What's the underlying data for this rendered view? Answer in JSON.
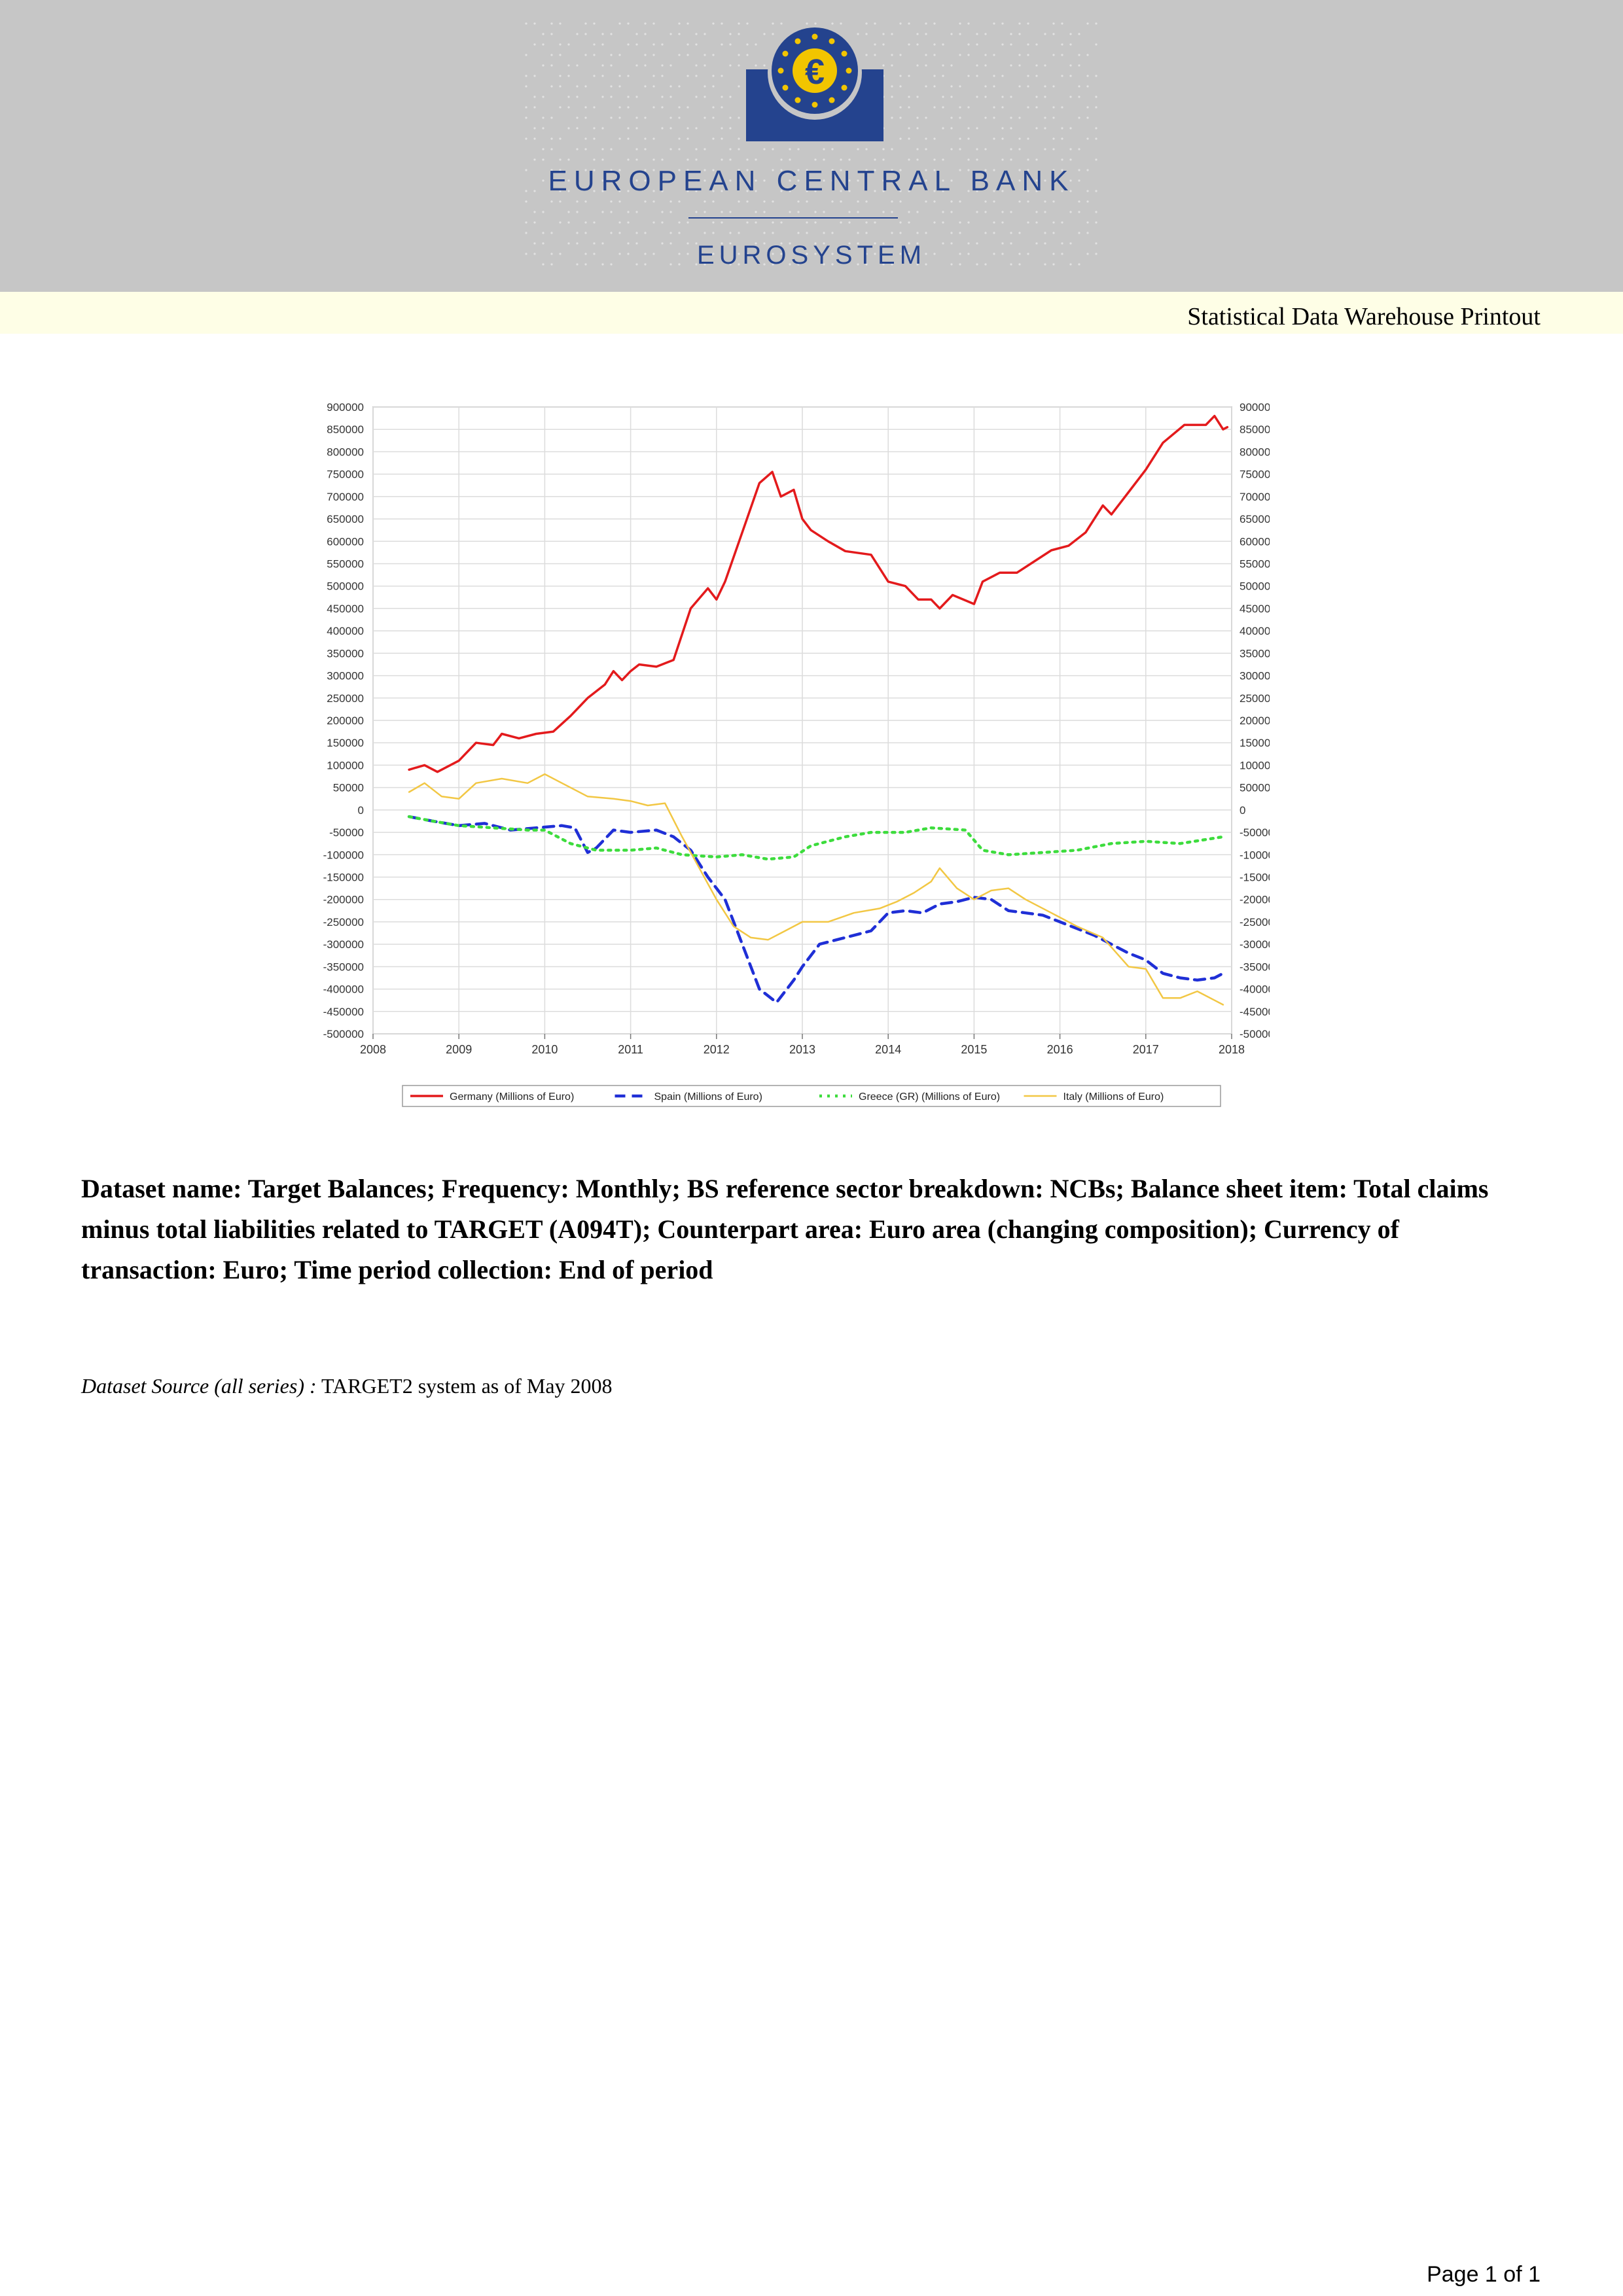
{
  "header": {
    "bank_name": "EUROPEAN CENTRAL BANK",
    "system_name": "EUROSYSTEM",
    "logo_icon": "euro-stars-logo-icon",
    "logo_colors": {
      "blue": "#24438e",
      "gold": "#f2c500"
    }
  },
  "printout_title": "Statistical Data Warehouse Printout",
  "chart_data": {
    "type": "line",
    "title": "",
    "xlabel": "",
    "ylabel": "",
    "xlim": [
      2008,
      2018
    ],
    "ylim": [
      -500000,
      900000
    ],
    "x_ticks": [
      "2008",
      "2009",
      "2010",
      "2011",
      "2012",
      "2013",
      "2014",
      "2015",
      "2016",
      "2017",
      "2018"
    ],
    "y_ticks": [
      "900000",
      "850000",
      "800000",
      "750000",
      "700000",
      "650000",
      "600000",
      "550000",
      "500000",
      "450000",
      "400000",
      "350000",
      "300000",
      "250000",
      "200000",
      "150000",
      "100000",
      "50000",
      "0",
      "-50000",
      "-100000",
      "-150000",
      "-200000",
      "-250000",
      "-300000",
      "-350000",
      "-400000",
      "-450000",
      "-500000"
    ],
    "grid": true,
    "legend_position": "bottom",
    "series": [
      {
        "name": "Germany (Millions of Euro)",
        "color": "#e31a1c",
        "style": "solid",
        "points": [
          [
            2008.42,
            90000
          ],
          [
            2008.6,
            100000
          ],
          [
            2008.75,
            85000
          ],
          [
            2009.0,
            110000
          ],
          [
            2009.2,
            150000
          ],
          [
            2009.4,
            145000
          ],
          [
            2009.5,
            170000
          ],
          [
            2009.7,
            160000
          ],
          [
            2009.9,
            170000
          ],
          [
            2010.1,
            175000
          ],
          [
            2010.3,
            210000
          ],
          [
            2010.5,
            250000
          ],
          [
            2010.7,
            280000
          ],
          [
            2010.8,
            310000
          ],
          [
            2010.9,
            290000
          ],
          [
            2011.0,
            310000
          ],
          [
            2011.1,
            325000
          ],
          [
            2011.3,
            320000
          ],
          [
            2011.5,
            335000
          ],
          [
            2011.7,
            450000
          ],
          [
            2011.9,
            495000
          ],
          [
            2012.0,
            470000
          ],
          [
            2012.1,
            510000
          ],
          [
            2012.3,
            620000
          ],
          [
            2012.5,
            730000
          ],
          [
            2012.65,
            755000
          ],
          [
            2012.75,
            700000
          ],
          [
            2012.9,
            715000
          ],
          [
            2013.0,
            650000
          ],
          [
            2013.1,
            625000
          ],
          [
            2013.3,
            600000
          ],
          [
            2013.5,
            578000
          ],
          [
            2013.8,
            570000
          ],
          [
            2014.0,
            510000
          ],
          [
            2014.2,
            500000
          ],
          [
            2014.35,
            470000
          ],
          [
            2014.5,
            470000
          ],
          [
            2014.6,
            450000
          ],
          [
            2014.75,
            480000
          ],
          [
            2014.9,
            468000
          ],
          [
            2015.0,
            460000
          ],
          [
            2015.1,
            510000
          ],
          [
            2015.3,
            530000
          ],
          [
            2015.5,
            530000
          ],
          [
            2015.7,
            555000
          ],
          [
            2015.9,
            580000
          ],
          [
            2016.1,
            590000
          ],
          [
            2016.3,
            620000
          ],
          [
            2016.5,
            680000
          ],
          [
            2016.6,
            660000
          ],
          [
            2016.8,
            710000
          ],
          [
            2017.0,
            760000
          ],
          [
            2017.2,
            820000
          ],
          [
            2017.45,
            860000
          ],
          [
            2017.7,
            860000
          ],
          [
            2017.8,
            880000
          ],
          [
            2017.9,
            850000
          ],
          [
            2017.95,
            855000
          ]
        ]
      },
      {
        "name": "Spain (Millions of Euro)",
        "color": "#1f2fd6",
        "style": "dashed",
        "points": [
          [
            2008.42,
            -15000
          ],
          [
            2008.7,
            -25000
          ],
          [
            2009.0,
            -35000
          ],
          [
            2009.3,
            -30000
          ],
          [
            2009.6,
            -45000
          ],
          [
            2009.9,
            -40000
          ],
          [
            2010.2,
            -35000
          ],
          [
            2010.35,
            -40000
          ],
          [
            2010.5,
            -95000
          ],
          [
            2010.6,
            -85000
          ],
          [
            2010.8,
            -45000
          ],
          [
            2011.0,
            -50000
          ],
          [
            2011.3,
            -45000
          ],
          [
            2011.5,
            -60000
          ],
          [
            2011.7,
            -90000
          ],
          [
            2011.9,
            -150000
          ],
          [
            2012.1,
            -200000
          ],
          [
            2012.3,
            -300000
          ],
          [
            2012.5,
            -400000
          ],
          [
            2012.7,
            -430000
          ],
          [
            2012.9,
            -380000
          ],
          [
            2013.0,
            -350000
          ],
          [
            2013.2,
            -300000
          ],
          [
            2013.5,
            -285000
          ],
          [
            2013.8,
            -270000
          ],
          [
            2014.0,
            -230000
          ],
          [
            2014.2,
            -225000
          ],
          [
            2014.4,
            -230000
          ],
          [
            2014.6,
            -210000
          ],
          [
            2014.8,
            -205000
          ],
          [
            2015.0,
            -195000
          ],
          [
            2015.2,
            -200000
          ],
          [
            2015.4,
            -225000
          ],
          [
            2015.6,
            -230000
          ],
          [
            2015.8,
            -235000
          ],
          [
            2016.0,
            -250000
          ],
          [
            2016.2,
            -265000
          ],
          [
            2016.4,
            -280000
          ],
          [
            2016.6,
            -300000
          ],
          [
            2016.8,
            -320000
          ],
          [
            2017.0,
            -335000
          ],
          [
            2017.2,
            -365000
          ],
          [
            2017.4,
            -375000
          ],
          [
            2017.6,
            -380000
          ],
          [
            2017.8,
            -375000
          ],
          [
            2017.9,
            -365000
          ]
        ]
      },
      {
        "name": "Greece (GR) (Millions of Euro)",
        "color": "#3ddc3d",
        "style": "dotted",
        "points": [
          [
            2008.42,
            -15000
          ],
          [
            2008.7,
            -25000
          ],
          [
            2009.0,
            -35000
          ],
          [
            2009.4,
            -40000
          ],
          [
            2009.8,
            -45000
          ],
          [
            2010.0,
            -45000
          ],
          [
            2010.3,
            -75000
          ],
          [
            2010.6,
            -90000
          ],
          [
            2011.0,
            -90000
          ],
          [
            2011.3,
            -85000
          ],
          [
            2011.6,
            -100000
          ],
          [
            2012.0,
            -105000
          ],
          [
            2012.3,
            -100000
          ],
          [
            2012.6,
            -110000
          ],
          [
            2012.9,
            -105000
          ],
          [
            2013.1,
            -80000
          ],
          [
            2013.5,
            -60000
          ],
          [
            2013.8,
            -50000
          ],
          [
            2014.2,
            -50000
          ],
          [
            2014.5,
            -40000
          ],
          [
            2014.9,
            -45000
          ],
          [
            2015.1,
            -90000
          ],
          [
            2015.4,
            -100000
          ],
          [
            2015.8,
            -95000
          ],
          [
            2016.2,
            -90000
          ],
          [
            2016.6,
            -75000
          ],
          [
            2017.0,
            -70000
          ],
          [
            2017.4,
            -75000
          ],
          [
            2017.9,
            -60000
          ]
        ]
      },
      {
        "name": "Italy (Millions of Euro)",
        "color": "#f2c744",
        "style": "solid",
        "points": [
          [
            2008.42,
            40000
          ],
          [
            2008.6,
            60000
          ],
          [
            2008.8,
            30000
          ],
          [
            2009.0,
            25000
          ],
          [
            2009.2,
            60000
          ],
          [
            2009.5,
            70000
          ],
          [
            2009.8,
            60000
          ],
          [
            2010.0,
            80000
          ],
          [
            2010.2,
            60000
          ],
          [
            2010.5,
            30000
          ],
          [
            2010.8,
            25000
          ],
          [
            2011.0,
            20000
          ],
          [
            2011.2,
            10000
          ],
          [
            2011.4,
            15000
          ],
          [
            2011.6,
            -60000
          ],
          [
            2011.8,
            -130000
          ],
          [
            2012.0,
            -200000
          ],
          [
            2012.2,
            -260000
          ],
          [
            2012.4,
            -285000
          ],
          [
            2012.6,
            -290000
          ],
          [
            2012.8,
            -270000
          ],
          [
            2013.0,
            -250000
          ],
          [
            2013.3,
            -250000
          ],
          [
            2013.6,
            -230000
          ],
          [
            2013.9,
            -220000
          ],
          [
            2014.1,
            -205000
          ],
          [
            2014.3,
            -185000
          ],
          [
            2014.5,
            -160000
          ],
          [
            2014.6,
            -130000
          ],
          [
            2014.8,
            -175000
          ],
          [
            2015.0,
            -200000
          ],
          [
            2015.2,
            -180000
          ],
          [
            2015.4,
            -175000
          ],
          [
            2015.6,
            -200000
          ],
          [
            2015.9,
            -230000
          ],
          [
            2016.2,
            -260000
          ],
          [
            2016.5,
            -285000
          ],
          [
            2016.8,
            -350000
          ],
          [
            2017.0,
            -355000
          ],
          [
            2017.2,
            -420000
          ],
          [
            2017.4,
            -420000
          ],
          [
            2017.6,
            -405000
          ],
          [
            2017.8,
            -425000
          ],
          [
            2017.9,
            -435000
          ]
        ]
      }
    ]
  },
  "dataset": {
    "description": "Dataset name: Target Balances; Frequency: Monthly; BS reference sector breakdown: NCBs; Balance sheet item: Total claims minus total liabilities related to TARGET (A094T); Counterpart area: Euro area (changing composition); Currency of transaction: Euro; Time period collection: End of period",
    "source_label": "Dataset Source (all series) :",
    "source_value": "TARGET2 system as of May 2008"
  },
  "footer": {
    "page_number": "Page 1 of 1"
  }
}
